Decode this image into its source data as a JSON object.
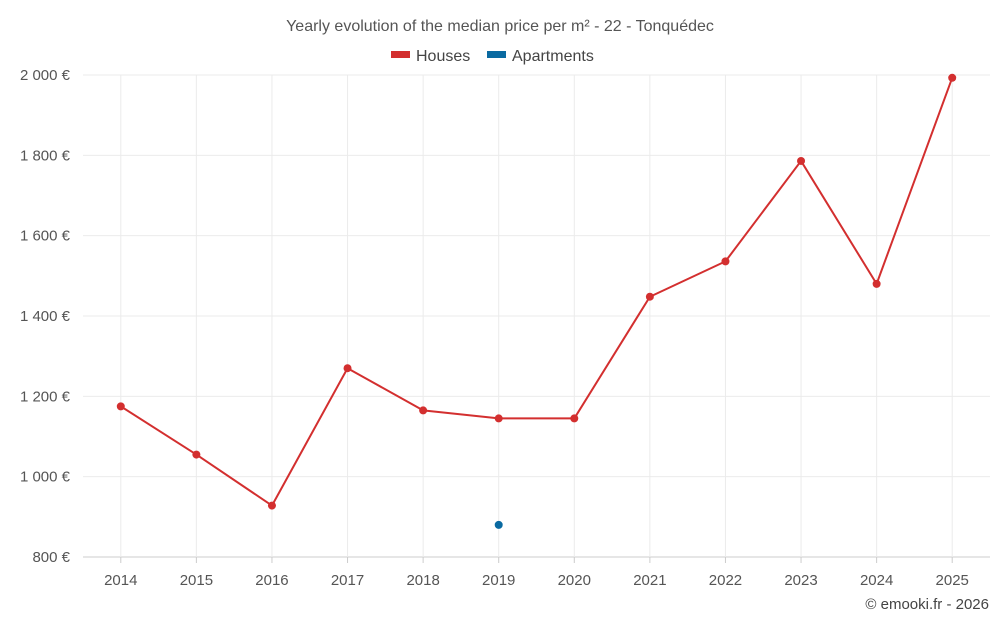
{
  "chart_data": {
    "type": "line",
    "title": "Yearly evolution of the median price per m² - 22 - Tonquédec",
    "categories": [
      "2014",
      "2015",
      "2016",
      "2017",
      "2018",
      "2019",
      "2020",
      "2021",
      "2022",
      "2023",
      "2024",
      "2025"
    ],
    "series": [
      {
        "name": "Houses",
        "color": "#d32f2f",
        "values": [
          1175,
          1055,
          928,
          1270,
          1165,
          1145,
          1145,
          1448,
          1536,
          1786,
          1480,
          1993
        ]
      },
      {
        "name": "Apartments",
        "color": "#0a6aa1",
        "values": [
          null,
          null,
          null,
          null,
          null,
          880,
          null,
          null,
          null,
          null,
          null,
          null
        ]
      }
    ],
    "ylim": [
      800,
      2000
    ],
    "yticks": [
      800,
      1000,
      1200,
      1400,
      1600,
      1800,
      2000
    ],
    "ytick_labels": [
      "800 €",
      "1 000 €",
      "1 200 €",
      "1 400 €",
      "1 600 €",
      "1 800 €",
      "2 000 €"
    ],
    "xlabel": "",
    "ylabel": "",
    "grid": true,
    "legend_position": "top-center"
  },
  "credit": "© emooki.fr - 2026"
}
